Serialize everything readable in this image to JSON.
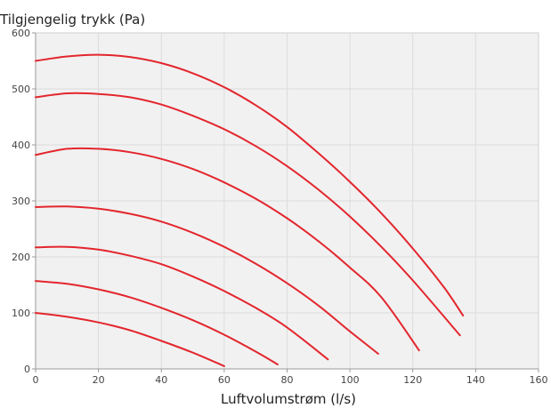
{
  "chart_data": {
    "type": "line",
    "title": "Tilgjengelig trykk (Pa)",
    "xlabel": "Luftvolumstrøm (l/s)",
    "ylabel": "",
    "xlim": [
      0,
      160
    ],
    "ylim": [
      0,
      600
    ],
    "xticks": [
      "0",
      "20",
      "40",
      "60",
      "80",
      "100",
      "120",
      "140",
      "160"
    ],
    "yticks": [
      "0",
      "100",
      "200",
      "300",
      "400",
      "500",
      "600"
    ],
    "grid": true,
    "colors": {
      "line": "#e3262d",
      "grid": "#dcdcdc",
      "plot_bg": "#f1f1f1",
      "axis": "#9a9a9a"
    },
    "series": [
      {
        "x": [
          0,
          10,
          20,
          30,
          40,
          50,
          60
        ],
        "y": [
          100,
          93,
          83,
          69,
          50,
          29,
          5
        ]
      },
      {
        "x": [
          0,
          10,
          20,
          30,
          40,
          50,
          60,
          70,
          77
        ],
        "y": [
          157,
          152,
          142,
          128,
          109,
          87,
          61,
          31,
          8
        ]
      },
      {
        "x": [
          0,
          10,
          20,
          30,
          40,
          50,
          60,
          70,
          80,
          93
        ],
        "y": [
          217,
          218,
          213,
          202,
          187,
          165,
          139,
          109,
          74,
          17
        ]
      },
      {
        "x": [
          0,
          10,
          20,
          30,
          40,
          50,
          60,
          70,
          80,
          90,
          100,
          109
        ],
        "y": [
          289,
          290,
          286,
          277,
          263,
          243,
          218,
          188,
          153,
          113,
          67,
          27
        ]
      },
      {
        "x": [
          0,
          10,
          20,
          30,
          40,
          50,
          60,
          70,
          80,
          90,
          100,
          110,
          122
        ],
        "y": [
          382,
          393,
          393,
          387,
          375,
          357,
          333,
          304,
          269,
          228,
          181,
          128,
          33
        ]
      },
      {
        "x": [
          0,
          10,
          20,
          30,
          40,
          50,
          60,
          70,
          80,
          90,
          100,
          110,
          120,
          135
        ],
        "y": [
          485,
          492,
          491,
          485,
          472,
          452,
          428,
          398,
          362,
          320,
          272,
          218,
          158,
          60
        ]
      },
      {
        "x": [
          0,
          10,
          20,
          30,
          40,
          50,
          60,
          70,
          80,
          90,
          100,
          110,
          120,
          130,
          136
        ],
        "y": [
          550,
          558,
          561,
          557,
          546,
          528,
          503,
          471,
          432,
          385,
          334,
          278,
          215,
          145,
          95
        ]
      }
    ]
  }
}
